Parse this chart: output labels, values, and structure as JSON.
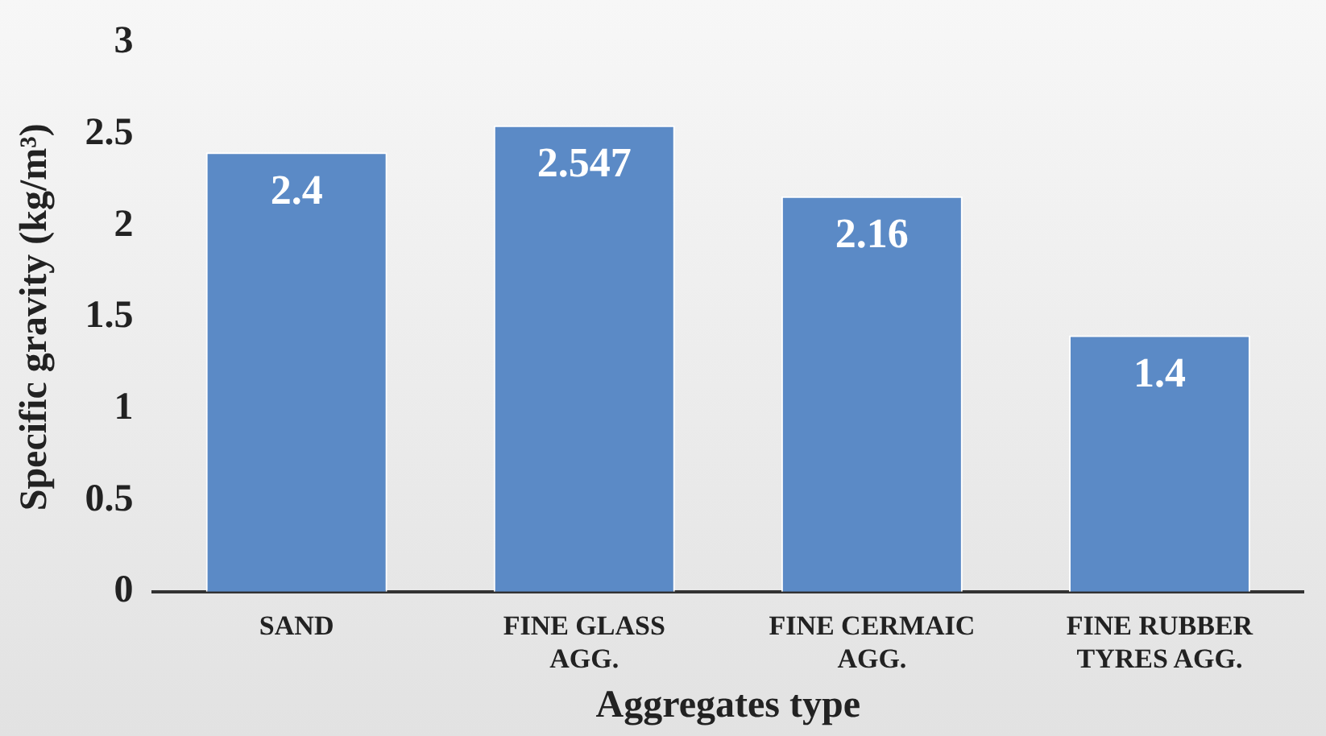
{
  "chart_data": {
    "type": "bar",
    "xlabel": "Aggregates type",
    "ylabel": "Specific gravity (kg/m³)",
    "categories": [
      "SAND",
      "FINE GLASS AGG.",
      "FINE CERMAIC AGG.",
      "FINE RUBBER TYRES AGG."
    ],
    "values": [
      2.4,
      2.547,
      2.16,
      1.4
    ],
    "color": "#5b8ac6",
    "ylim": [
      0,
      3
    ],
    "yticks": [
      0,
      0.5,
      1,
      1.5,
      2,
      2.5,
      3
    ],
    "grid": false,
    "legend": false,
    "data_labels": true
  }
}
